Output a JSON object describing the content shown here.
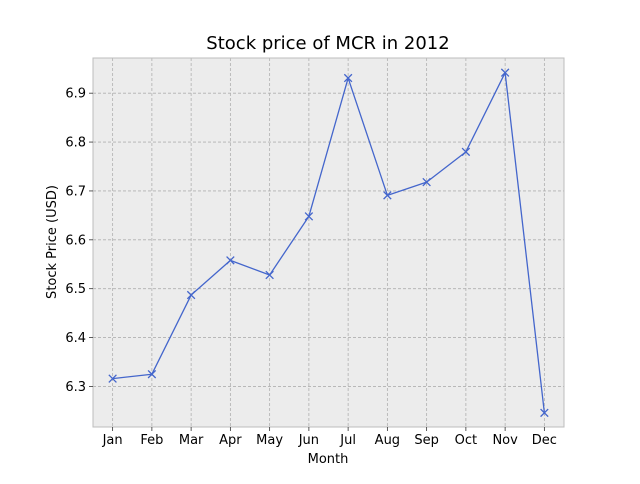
{
  "chart_data": {
    "type": "line",
    "title": "Stock price of MCR in 2012",
    "xlabel": "Month",
    "ylabel": "Stock Price (USD)",
    "categories": [
      "Jan",
      "Feb",
      "Mar",
      "Apr",
      "May",
      "Jun",
      "Jul",
      "Aug",
      "Sep",
      "Oct",
      "Nov",
      "Dec"
    ],
    "values": [
      6.316,
      6.325,
      6.487,
      6.558,
      6.528,
      6.648,
      6.931,
      6.691,
      6.718,
      6.78,
      6.942,
      6.246
    ],
    "ylim": [
      6.217,
      6.972
    ],
    "yticks": [
      "6.3",
      "6.4",
      "6.5",
      "6.6",
      "6.7",
      "6.8",
      "6.9"
    ],
    "grid": true,
    "marker": "x",
    "colors": {
      "line": "#4466cc",
      "plot_bg": "#ececec",
      "grid": "#b0b0b0",
      "axis": "#bdbdbd"
    }
  }
}
